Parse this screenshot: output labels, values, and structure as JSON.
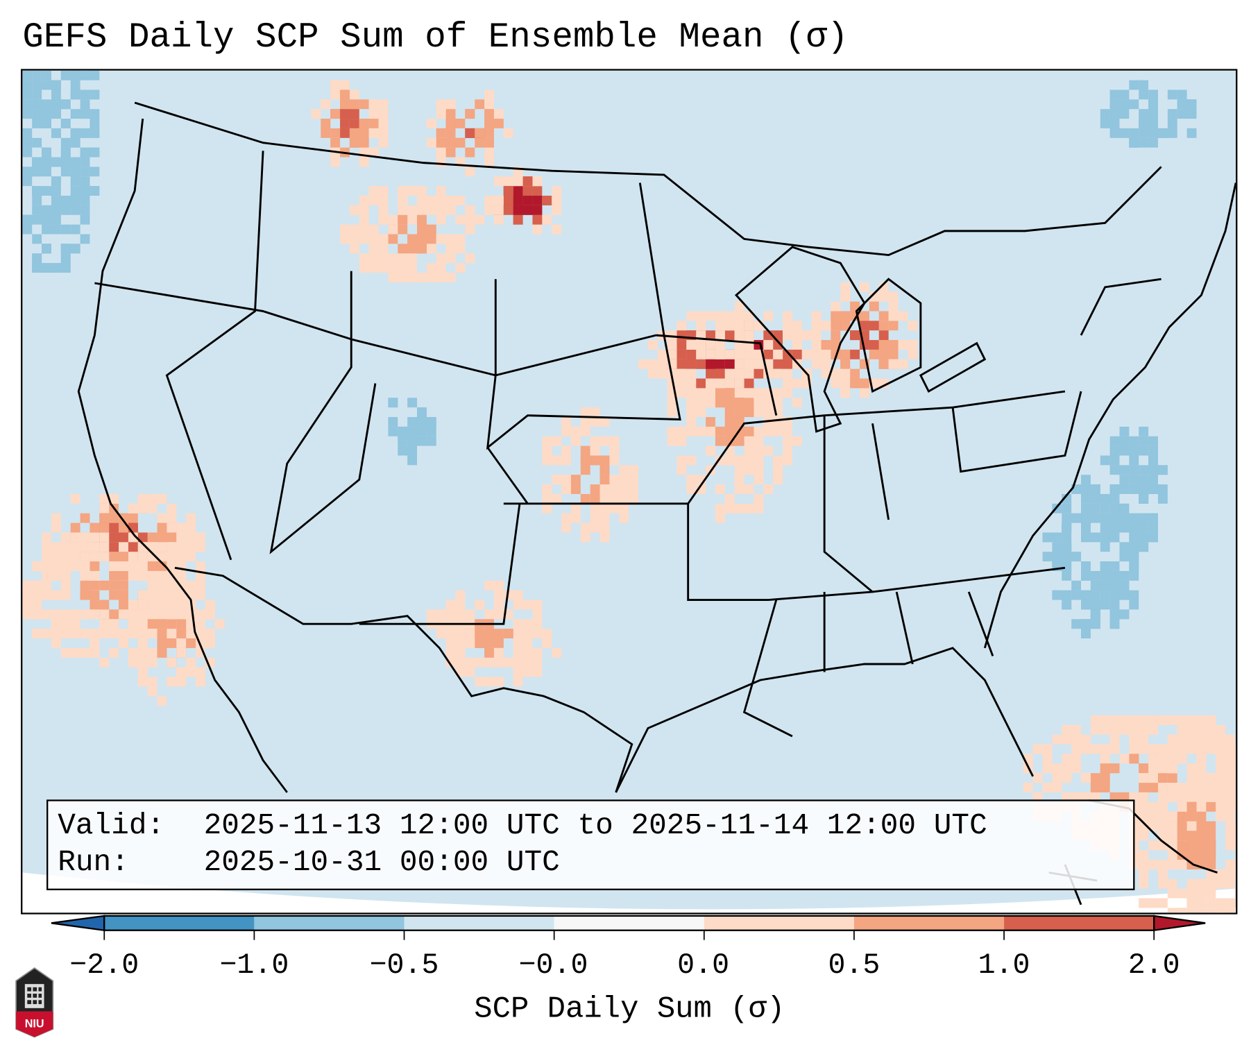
{
  "title": "GEFS Daily SCP Sum of Ensemble Mean (σ)",
  "info": {
    "valid_label": "Valid:",
    "valid_value": "2025-11-13 12:00 UTC to 2025-11-14 12:00 UTC",
    "run_label": "Run:",
    "run_value": "2025-10-31 00:00 UTC"
  },
  "colorbar": {
    "label": "SCP Daily Sum (σ)",
    "ticks": [
      "−2.0",
      "−1.0",
      "−0.5",
      "−0.0",
      "0.0",
      "0.5",
      "1.0",
      "2.0"
    ],
    "colors": [
      "#2166ac",
      "#4393c3",
      "#92c5de",
      "#d1e5f0",
      "#f7f7f7",
      "#fddbc7",
      "#f4a582",
      "#d6604d",
      "#b2182b"
    ],
    "extend": "both"
  },
  "logo": {
    "text": "NIU"
  }
}
